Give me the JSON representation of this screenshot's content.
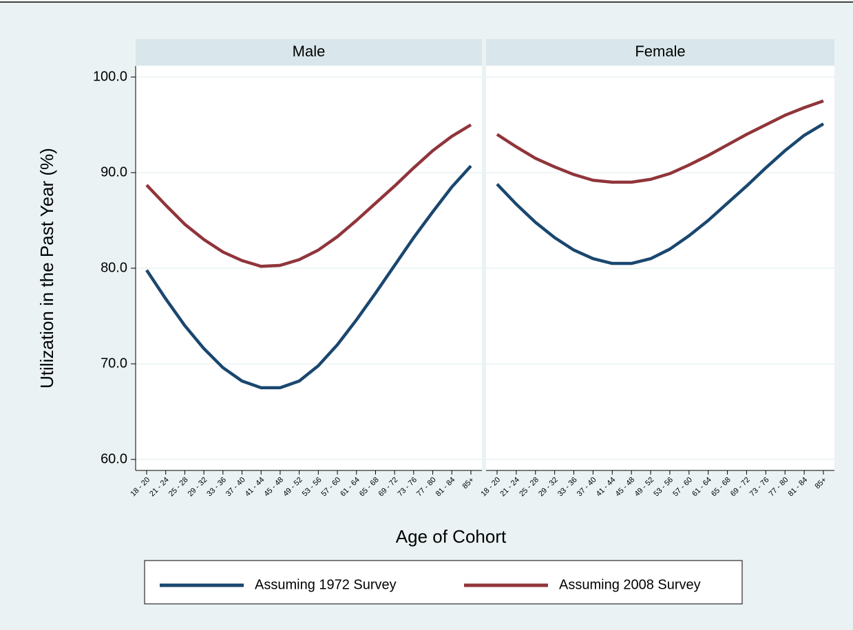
{
  "chart_data": {
    "type": "line",
    "ylabel": "Utilization in the Past Year (%)",
    "xlabel": "Age of Cohort",
    "categories": [
      "18 - 20",
      "21 - 24",
      "25 - 28",
      "29 - 32",
      "33 - 36",
      "37 - 40",
      "41 - 44",
      "45 - 48",
      "49 - 52",
      "53 - 56",
      "57 - 60",
      "61 - 64",
      "65 - 68",
      "69 - 72",
      "73 - 76",
      "77 - 80",
      "81 - 84",
      "85+"
    ],
    "ylim": [
      60,
      100
    ],
    "yticks": [
      {
        "value": 60,
        "label": "60.0"
      },
      {
        "value": 70,
        "label": "70.0"
      },
      {
        "value": 80,
        "label": "80.0"
      },
      {
        "value": 90,
        "label": "90.0"
      },
      {
        "value": 100,
        "label": "100.0"
      }
    ],
    "grid": true,
    "panels": [
      {
        "title": "Male",
        "series": [
          {
            "name": "Assuming 1972 Survey",
            "color": "#1a476f",
            "values": [
              79.8,
              76.8,
              74.0,
              71.6,
              69.6,
              68.2,
              67.5,
              67.5,
              68.2,
              69.8,
              72.0,
              74.6,
              77.4,
              80.3,
              83.2,
              85.9,
              88.5,
              90.7
            ]
          },
          {
            "name": "Assuming 2008 Survey",
            "color": "#90353b",
            "values": [
              88.7,
              86.6,
              84.6,
              83.0,
              81.7,
              80.8,
              80.2,
              80.3,
              80.9,
              81.9,
              83.3,
              85.0,
              86.8,
              88.6,
              90.5,
              92.3,
              93.8,
              95.0
            ]
          }
        ]
      },
      {
        "title": "Female",
        "series": [
          {
            "name": "Assuming 1972 Survey",
            "color": "#1a476f",
            "values": [
              88.8,
              86.7,
              84.8,
              83.2,
              81.9,
              81.0,
              80.5,
              80.5,
              81.0,
              82.0,
              83.4,
              85.0,
              86.8,
              88.6,
              90.5,
              92.3,
              93.9,
              95.1
            ]
          },
          {
            "name": "Assuming 2008 Survey",
            "color": "#90353b",
            "values": [
              94.0,
              92.7,
              91.5,
              90.6,
              89.8,
              89.2,
              89.0,
              89.0,
              89.3,
              89.9,
              90.8,
              91.8,
              92.9,
              94.0,
              95.0,
              96.0,
              96.8,
              97.5
            ]
          }
        ]
      }
    ]
  }
}
